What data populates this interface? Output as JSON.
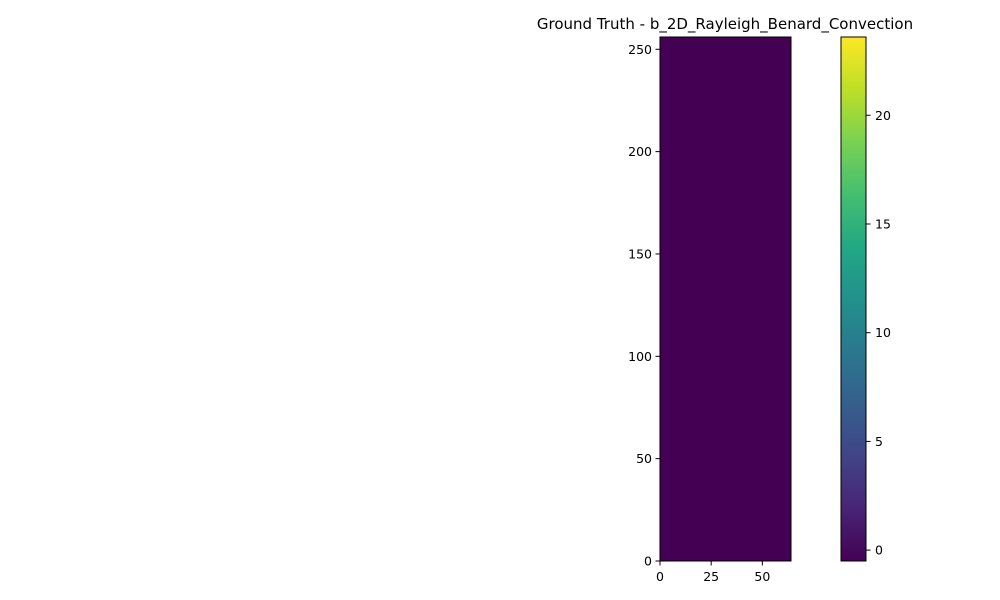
{
  "chart_data": {
    "type": "heatmap",
    "title": "Ground Truth - b_2D_Rayleigh_Benard_Convection",
    "xlabel": "",
    "ylabel": "",
    "xlim": [
      0,
      64
    ],
    "ylim": [
      0,
      256
    ],
    "x_ticks": [
      "0",
      "25",
      "50"
    ],
    "x_tick_values": [
      0,
      25,
      50
    ],
    "y_ticks": [
      "0",
      "50",
      "100",
      "150",
      "200",
      "250"
    ],
    "y_tick_values": [
      0,
      50,
      100,
      150,
      200,
      250
    ],
    "field_value": 0,
    "field_color": "#440154",
    "colormap": "viridis",
    "colorbar": {
      "range": [
        -0.5,
        23.6
      ],
      "ticks": [
        "0",
        "5",
        "10",
        "15",
        "20"
      ],
      "tick_values": [
        0,
        5,
        10,
        15,
        20
      ]
    },
    "grid": false
  }
}
